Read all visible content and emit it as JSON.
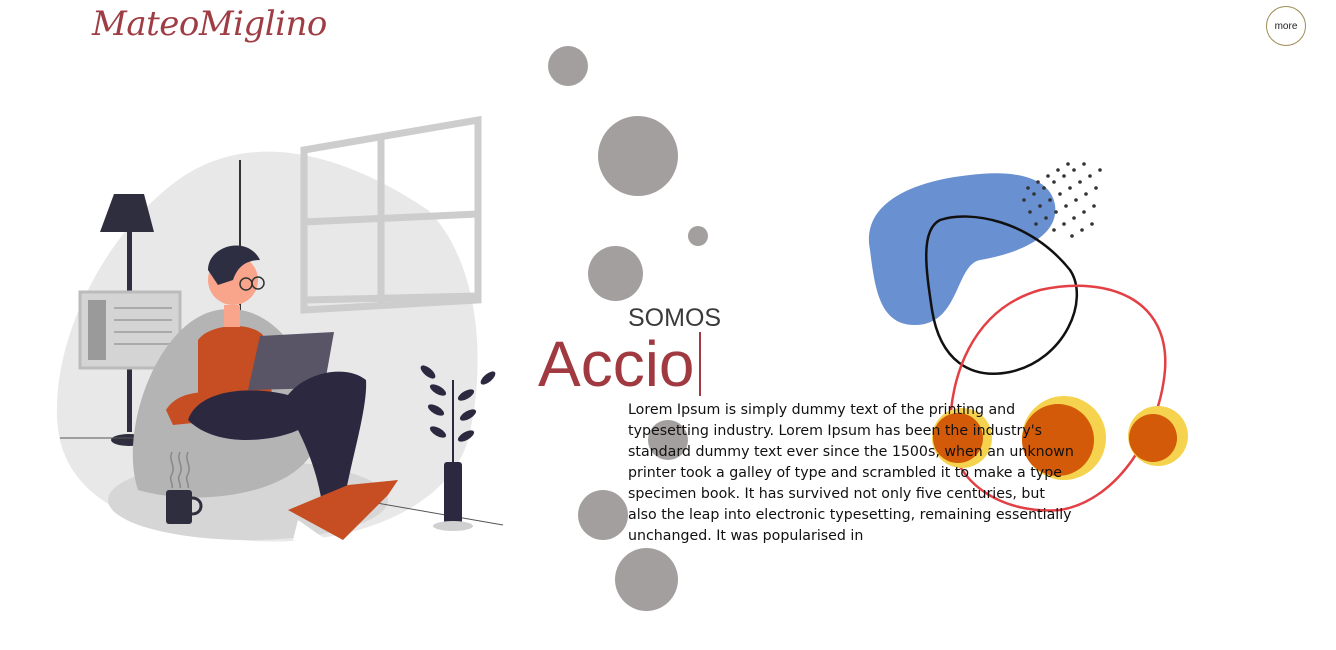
{
  "header": {
    "logo_text": "MateoMiglino",
    "more_label": "more"
  },
  "hero": {
    "eyebrow": "SOMOS",
    "typed_word": "Accio",
    "description": "Lorem Ipsum is simply dummy text of the printing and typesetting industry. Lorem Ipsum has been the industry's standard dummy text ever since the 1500s, when an unknown printer took a galley of type and scrambled it to make a type specimen book. It has survived not only five centuries, but also the leap into electronic typesetting, remaining essentially unchanged. It was popularised in"
  },
  "colors": {
    "brand": "#9e3d44",
    "bubble": "#a39f9e",
    "blob_blue": "#6990d0",
    "accent_orange": "#d35a08",
    "accent_yellow": "#f5d34e",
    "ring_red": "#e34045"
  },
  "icons": {
    "illustration": "person-with-laptop-illustration",
    "abstract": "abstract-shapes-decoration"
  }
}
